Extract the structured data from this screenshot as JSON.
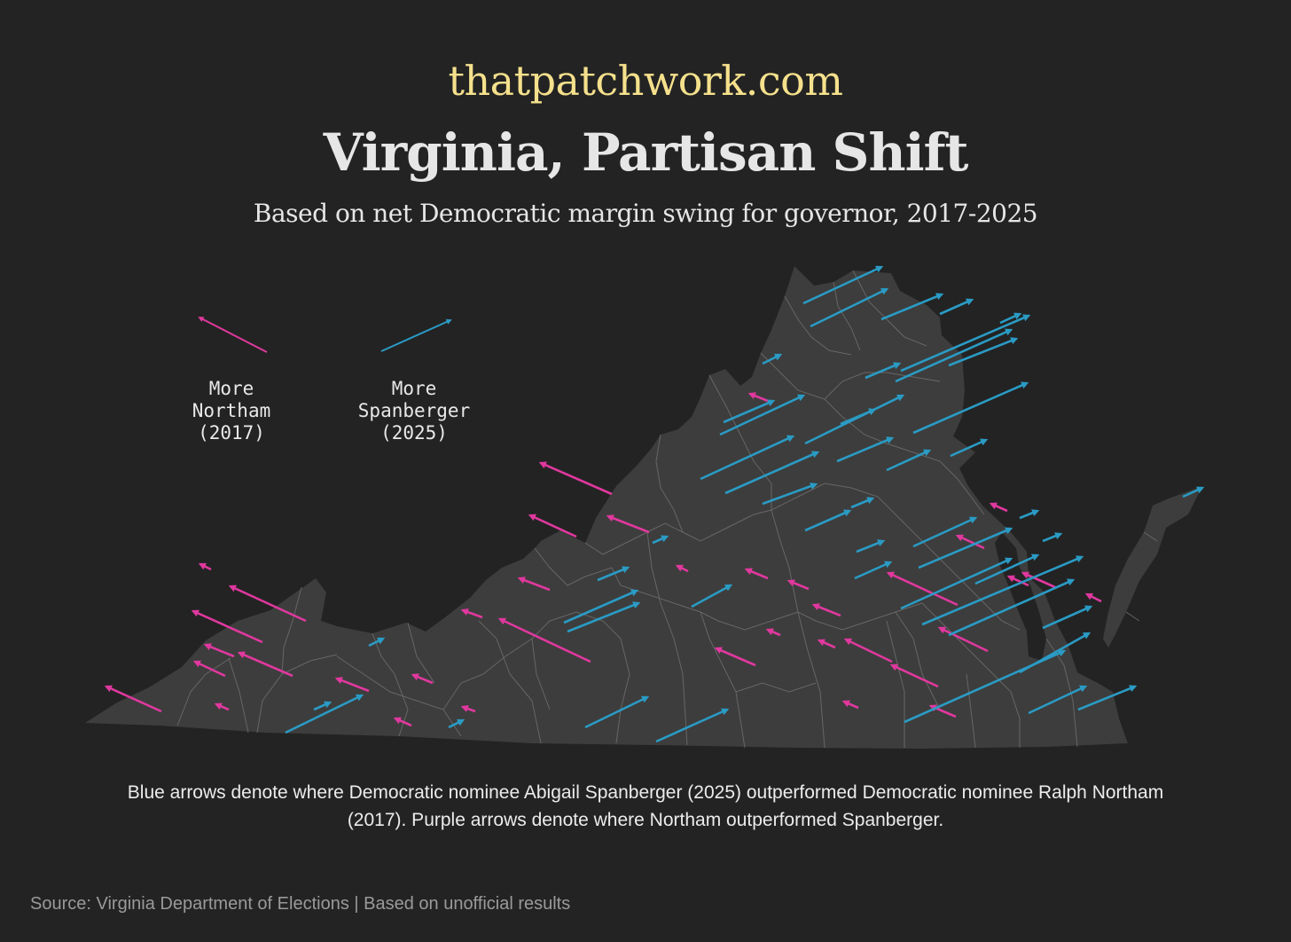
{
  "header": {
    "site": "thatpatchwork.com",
    "title": "Virginia, Partisan Shift",
    "subtitle": "Based on net Democratic margin swing for governor, 2017-2025"
  },
  "legend": {
    "northam": {
      "line1": "More",
      "line2": "Northam",
      "line3": "(2017)"
    },
    "spanberger": {
      "line1": "More",
      "line2": "Spanberger",
      "line3": "(2025)"
    }
  },
  "caption": "Blue arrows denote where Democratic nominee Abigail Spanberger (2025) outperformed Democratic nominee Ralph Northam (2017). Purple arrows denote where Northam outperformed Spanberger.",
  "source": "Source: Virginia Department of Elections | Based on unofficial results",
  "colors": {
    "background": "#232323",
    "state_fill": "#3d3d3d",
    "county_border": "#6e6e6e",
    "northam_arrow": "#e0389e",
    "spanberger_arrow": "#2a9bc4",
    "site_text": "#f5e08c"
  },
  "icons": {
    "northam_legend": "arrow-up-left-icon",
    "spanberger_legend": "arrow-up-right-icon"
  }
}
